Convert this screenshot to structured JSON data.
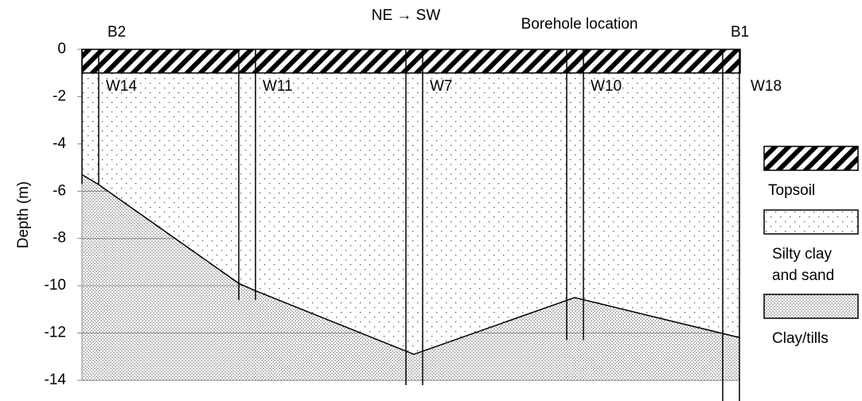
{
  "title": "NE → SW",
  "subtitle": "Borehole location",
  "end_labels": [
    "B2",
    "B1"
  ],
  "y_axis": {
    "label": "Depth (m)",
    "ylim": [
      -14,
      0
    ],
    "yticks": [
      0,
      -2,
      -4,
      -6,
      -8,
      -10,
      -12,
      -14
    ]
  },
  "topsoil_depth": -1,
  "boundary_depths": [
    -5.3,
    -5.7,
    -9.9,
    -10.2,
    -12.9,
    -10.5,
    -12.2
  ],
  "boreholes": [
    {
      "label": "W14",
      "depth": -5.7
    },
    {
      "label": "W11",
      "depth": -10.6
    },
    {
      "label": "W7",
      "depth": -14.2
    },
    {
      "label": "W10",
      "depth": -12.3
    },
    {
      "label": "W18",
      "depth": -15
    }
  ],
  "legend": [
    {
      "label": [
        "Topsoil"
      ]
    },
    {
      "label": [
        "Silty clay",
        "and sand"
      ]
    },
    {
      "label": [
        "Clay/tills"
      ]
    }
  ]
}
